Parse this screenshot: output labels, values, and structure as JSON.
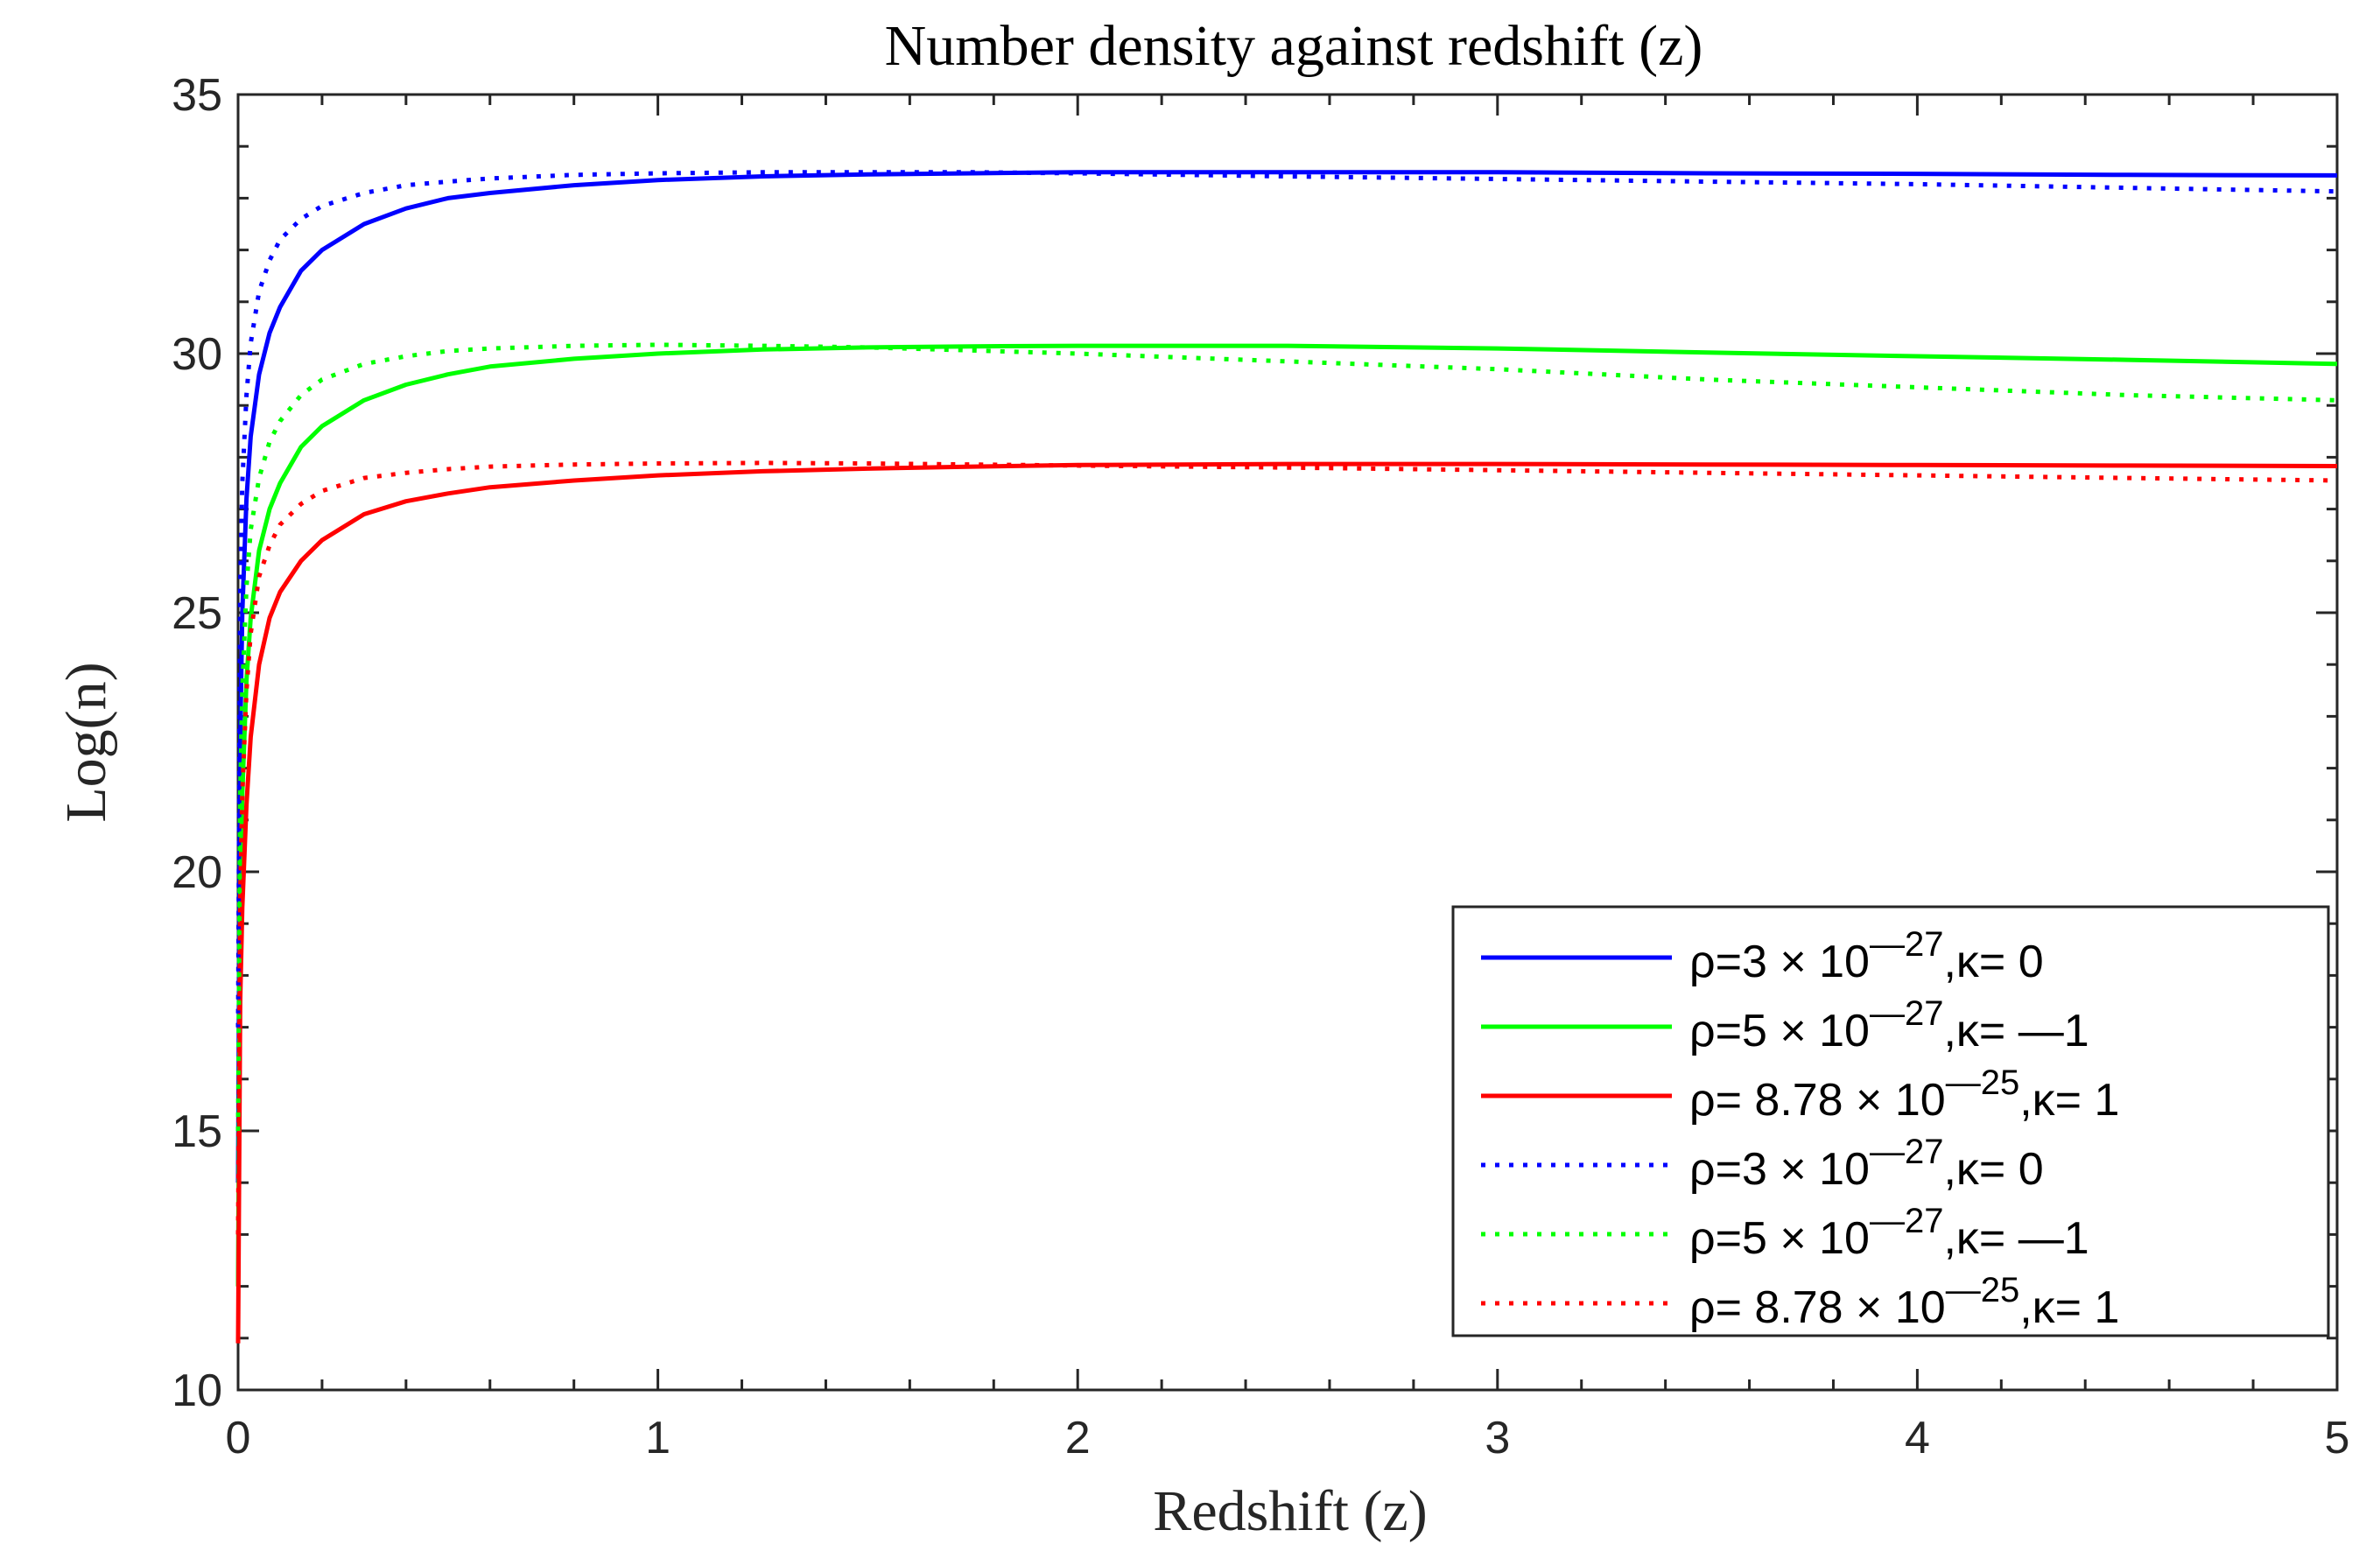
{
  "chart_data": {
    "type": "line",
    "title": "Number density against redshift (z)",
    "xlabel": "Redshift (z)",
    "ylabel": "Log(n)",
    "xlim": [
      0,
      5
    ],
    "ylim": [
      10,
      35
    ],
    "xticks": [
      0,
      1,
      2,
      3,
      4,
      5
    ],
    "yticks": [
      10,
      15,
      20,
      25,
      30,
      35
    ],
    "xtick_labels": [
      "0",
      "1",
      "2",
      "3",
      "4",
      "5"
    ],
    "ytick_labels": [
      "10",
      "15",
      "20",
      "25",
      "30",
      "35"
    ],
    "grid": false,
    "legend_position": "bottom-right",
    "x": [
      0,
      0.005,
      0.01,
      0.02,
      0.03,
      0.05,
      0.075,
      0.1,
      0.15,
      0.2,
      0.3,
      0.4,
      0.5,
      0.6,
      0.8,
      1.0,
      1.25,
      1.5,
      1.75,
      2.0,
      2.5,
      3.0,
      3.5,
      4.0,
      4.5,
      5.0
    ],
    "series": [
      {
        "name": "solid-blue",
        "label_prefix": "ρ=3 × 10",
        "label_exp": "—27",
        "label_suffix": ",κ= 0",
        "color": "#0000ff",
        "style": "solid",
        "values": [
          14.0,
          22.5,
          25.0,
          27.2,
          28.4,
          29.6,
          30.4,
          30.9,
          31.6,
          32.0,
          32.5,
          32.8,
          33.0,
          33.1,
          33.25,
          33.35,
          33.42,
          33.46,
          33.48,
          33.5,
          33.5,
          33.5,
          33.48,
          33.47,
          33.45,
          33.44
        ]
      },
      {
        "name": "solid-green",
        "label_prefix": "ρ=5 × 10",
        "label_exp": "—27",
        "label_suffix": ",κ= —1",
        "color": "#00ff00",
        "style": "solid",
        "values": [
          12.0,
          19.5,
          21.5,
          23.7,
          24.9,
          26.2,
          27.0,
          27.5,
          28.2,
          28.6,
          29.1,
          29.4,
          29.6,
          29.75,
          29.9,
          30.0,
          30.08,
          30.12,
          30.14,
          30.15,
          30.15,
          30.1,
          30.02,
          29.95,
          29.88,
          29.8
        ]
      },
      {
        "name": "solid-red",
        "label_prefix": "ρ= 8.78 × 10",
        "label_exp": "—25",
        "label_suffix": ",κ= 1",
        "color": "#ff0000",
        "style": "solid",
        "values": [
          10.9,
          17.5,
          19.3,
          21.3,
          22.6,
          24.0,
          24.9,
          25.4,
          26.0,
          26.4,
          26.9,
          27.15,
          27.3,
          27.42,
          27.55,
          27.65,
          27.73,
          27.78,
          27.82,
          27.85,
          27.87,
          27.87,
          27.86,
          27.85,
          27.84,
          27.83
        ]
      },
      {
        "name": "dotted-blue",
        "label_prefix": "ρ=3 × 10",
        "label_exp": "—27",
        "label_suffix": ",κ= 0",
        "color": "#0000ff",
        "style": "dotted",
        "values": [
          17.0,
          25.5,
          27.5,
          29.2,
          30.2,
          31.2,
          31.8,
          32.2,
          32.6,
          32.85,
          33.1,
          33.25,
          33.32,
          33.38,
          33.45,
          33.48,
          33.5,
          33.5,
          33.5,
          33.48,
          33.42,
          33.37,
          33.32,
          33.27,
          33.2,
          33.13
        ]
      },
      {
        "name": "dotted-green",
        "label_prefix": "ρ=5 × 10",
        "label_exp": "—27",
        "label_suffix": ",κ= —1",
        "color": "#00ff00",
        "style": "dotted",
        "values": [
          15.0,
          21.5,
          23.5,
          25.5,
          26.6,
          27.6,
          28.3,
          28.7,
          29.2,
          29.5,
          29.8,
          29.95,
          30.05,
          30.1,
          30.15,
          30.17,
          30.15,
          30.12,
          30.06,
          30.0,
          29.85,
          29.7,
          29.5,
          29.35,
          29.2,
          29.1
        ]
      },
      {
        "name": "dotted-red",
        "label_prefix": "ρ= 8.78 × 10",
        "label_exp": "—25",
        "label_suffix": ",κ= 1",
        "color": "#ff0000",
        "style": "dotted",
        "values": [
          13.0,
          19.5,
          21.5,
          23.5,
          24.6,
          25.7,
          26.3,
          26.7,
          27.1,
          27.35,
          27.6,
          27.7,
          27.77,
          27.82,
          27.86,
          27.88,
          27.89,
          27.88,
          27.86,
          27.84,
          27.8,
          27.75,
          27.7,
          27.65,
          27.6,
          27.55
        ]
      }
    ]
  }
}
